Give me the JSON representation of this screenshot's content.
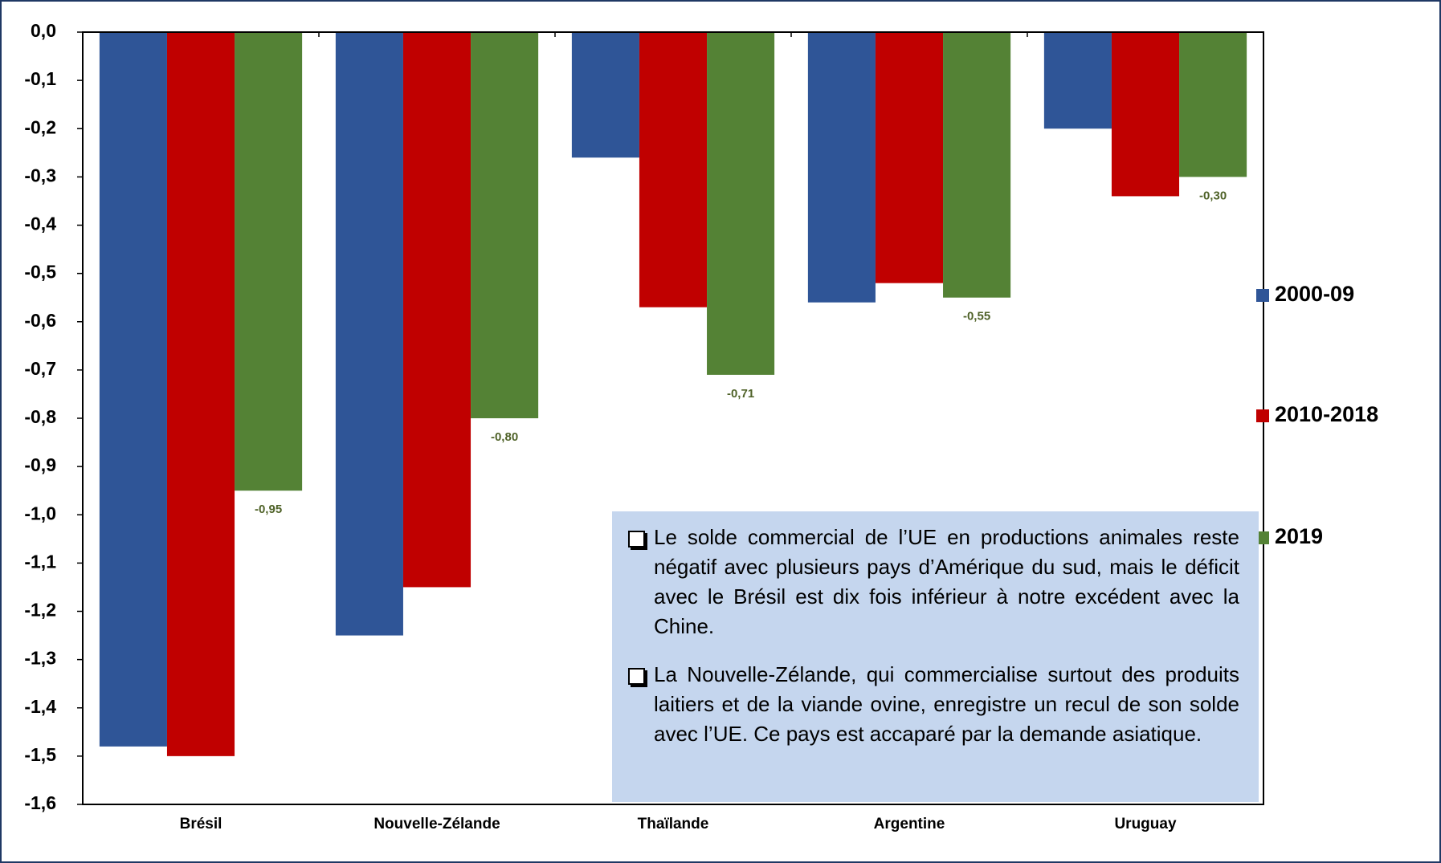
{
  "chart_data": {
    "type": "bar",
    "categories": [
      "Brésil",
      "Nouvelle-Zélande",
      "Thaïlande",
      "Argentine",
      "Uruguay"
    ],
    "series": [
      {
        "name": "2000-09",
        "color": "#2f5597",
        "values": [
          -1.48,
          -1.25,
          -0.26,
          -0.56,
          -0.2
        ]
      },
      {
        "name": "2010-2018",
        "color": "#c00000",
        "values": [
          -1.5,
          -1.15,
          -0.57,
          -0.52,
          -0.34
        ]
      },
      {
        "name": "2019",
        "color": "#548235",
        "values": [
          -0.95,
          -0.8,
          -0.71,
          -0.55,
          -0.3
        ],
        "value_labels": [
          "-0,95",
          "-0,80",
          "-0,71",
          "-0,55",
          "-0,30"
        ]
      }
    ],
    "ylim": [
      -1.6,
      0
    ],
    "yticks": [
      {
        "value": 0,
        "label": "0,0"
      },
      {
        "value": -0.1,
        "label": "-0,1"
      },
      {
        "value": -0.2,
        "label": "-0,2"
      },
      {
        "value": -0.3,
        "label": "-0,3"
      },
      {
        "value": -0.4,
        "label": "-0,4"
      },
      {
        "value": -0.5,
        "label": "-0,5"
      },
      {
        "value": -0.6,
        "label": "-0,6"
      },
      {
        "value": -0.7,
        "label": "-0,7"
      },
      {
        "value": -0.8,
        "label": "-0,8"
      },
      {
        "value": -0.9,
        "label": "-0,9"
      },
      {
        "value": -1.0,
        "label": "-1,0"
      },
      {
        "value": -1.1,
        "label": "-1,1"
      },
      {
        "value": -1.2,
        "label": "-1,2"
      },
      {
        "value": -1.3,
        "label": "-1,3"
      },
      {
        "value": -1.4,
        "label": "-1,4"
      },
      {
        "value": -1.5,
        "label": "-1,5"
      },
      {
        "value": -1.6,
        "label": "-1,6"
      }
    ],
    "grid": false,
    "legend": "right",
    "annotations": [
      "Le solde commercial de l’UE en productions animales reste négatif avec plusieurs pays d’Amérique du sud, mais le déficit avec le Brésil est dix fois inférieur à notre excédent avec la Chine.",
      "La Nouvelle-Zélande, qui commercialise surtout des produits laitiers et de la viande ovine, enregistre un recul de son solde avec l’UE. Ce pays est accaparé par la demande asiatique."
    ]
  }
}
